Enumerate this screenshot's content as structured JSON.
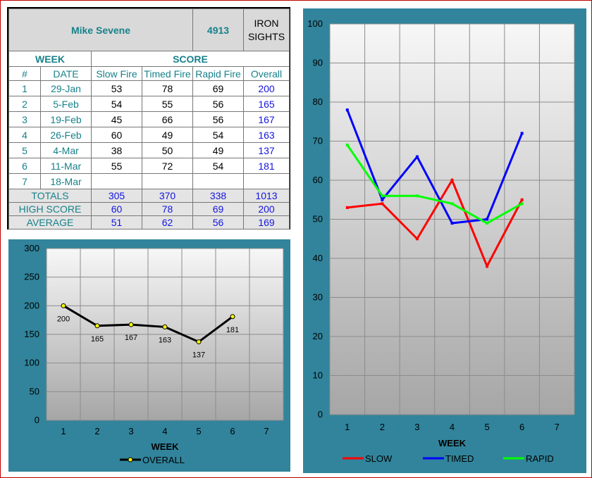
{
  "header": {
    "name": "Mike Sevene",
    "number": "4913",
    "sights_line1": "IRON",
    "sights_line2": "SIGHTS"
  },
  "table": {
    "section_week": "WEEK",
    "section_score": "SCORE",
    "columns": [
      "#",
      "DATE",
      "Slow Fire",
      "Timed Fire",
      "Rapid Fire",
      "Overall"
    ],
    "rows": [
      {
        "num": "1",
        "date": "29-Jan",
        "slow": "53",
        "timed": "78",
        "rapid": "69",
        "overall": "200"
      },
      {
        "num": "2",
        "date": "5-Feb",
        "slow": "54",
        "timed": "55",
        "rapid": "56",
        "overall": "165"
      },
      {
        "num": "3",
        "date": "19-Feb",
        "slow": "45",
        "timed": "66",
        "rapid": "56",
        "overall": "167"
      },
      {
        "num": "4",
        "date": "26-Feb",
        "slow": "60",
        "timed": "49",
        "rapid": "54",
        "overall": "163"
      },
      {
        "num": "5",
        "date": "4-Mar",
        "slow": "38",
        "timed": "50",
        "rapid": "49",
        "overall": "137"
      },
      {
        "num": "6",
        "date": "11-Mar",
        "slow": "55",
        "timed": "72",
        "rapid": "54",
        "overall": "181"
      },
      {
        "num": "7",
        "date": "18-Mar",
        "slow": "",
        "timed": "",
        "rapid": "",
        "overall": ""
      }
    ],
    "totals": {
      "label": "TOTALS",
      "slow": "305",
      "timed": "370",
      "rapid": "338",
      "overall": "1013"
    },
    "high": {
      "label": "HIGH SCORE",
      "slow": "60",
      "timed": "78",
      "rapid": "69",
      "overall": "200"
    },
    "average": {
      "label": "AVERAGE",
      "slow": "51",
      "timed": "62",
      "rapid": "56",
      "overall": "169"
    }
  },
  "colors": {
    "panel": "#31849b",
    "teal_text": "#17818a",
    "blue_text": "#1515e0",
    "slow": "#ff0000",
    "timed": "#0000ff",
    "rapid": "#00ff00",
    "overall": "#000000",
    "marker": "#ffff00"
  },
  "chart_data": [
    {
      "type": "line",
      "xlabel": "WEEK",
      "categories": [
        "1",
        "2",
        "3",
        "4",
        "5",
        "6",
        "7"
      ],
      "ylim": [
        0,
        300
      ],
      "yticks": [
        0,
        50,
        100,
        150,
        200,
        250,
        300
      ],
      "grid": true,
      "legend": "bottom",
      "series": [
        {
          "name": "OVERALL",
          "values": [
            200,
            165,
            167,
            163,
            137,
            181,
            null
          ],
          "data_labels": true
        }
      ]
    },
    {
      "type": "line",
      "xlabel": "WEEK",
      "categories": [
        "1",
        "2",
        "3",
        "4",
        "5",
        "6",
        "7"
      ],
      "ylim": [
        0,
        100
      ],
      "yticks": [
        0,
        10,
        20,
        30,
        40,
        50,
        60,
        70,
        80,
        90,
        100
      ],
      "grid": true,
      "legend": "bottom",
      "series": [
        {
          "name": "SLOW",
          "values": [
            53,
            54,
            45,
            60,
            38,
            55,
            null
          ]
        },
        {
          "name": "TIMED",
          "values": [
            78,
            55,
            66,
            49,
            50,
            72,
            null
          ]
        },
        {
          "name": "RAPID",
          "values": [
            69,
            56,
            56,
            54,
            49,
            54,
            null
          ]
        }
      ]
    }
  ]
}
